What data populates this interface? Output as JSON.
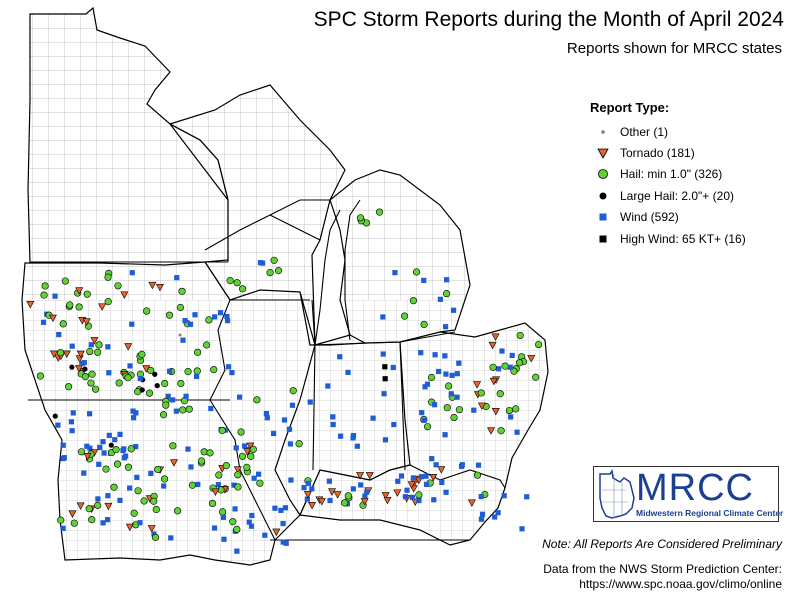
{
  "map": {
    "title": "SPC Storm Reports during the Month of April 2024",
    "subtitle": "Reports shown for MRCC states",
    "region": "Midwest United States (MRCC states): MN, WI, IA, MO, IL, IN, MI, OH, KY",
    "colors": {
      "background": "#ffffff",
      "county_line": "#b4b4b4",
      "state_line": "#000000",
      "tornado": "#e8622c",
      "hail": "#5fd334",
      "large_hail": "#000000",
      "wind": "#1f5cd6",
      "high_wind": "#000000",
      "other": "#7f7f7f"
    }
  },
  "legend": {
    "title": "Report Type:",
    "items": [
      {
        "key": "other",
        "label": "Other (1)",
        "icon": "small-gray-dot-icon"
      },
      {
        "key": "tornado",
        "label": "Tornado (181)",
        "icon": "orange-triangle-icon"
      },
      {
        "key": "hail",
        "label": "Hail: min 1.0\" (326)",
        "icon": "green-circle-icon"
      },
      {
        "key": "large_hail",
        "label": "Large Hail: 2.0\"+ (20)",
        "icon": "black-circle-icon"
      },
      {
        "key": "wind",
        "label": "Wind (592)",
        "icon": "blue-square-icon"
      },
      {
        "key": "high_wind",
        "label": "High Wind: 65 KT+ (16)",
        "icon": "black-square-icon"
      }
    ]
  },
  "logo": {
    "text": "MRCC",
    "subtext": "Midwestern Regional Climate Center"
  },
  "footer": {
    "note": "Note: All Reports Are Considered Preliminary",
    "source_line1": "Data from the NWS Storm Prediction Center:",
    "source_line2": "https://www.spc.noaa.gov/climo/online"
  }
}
